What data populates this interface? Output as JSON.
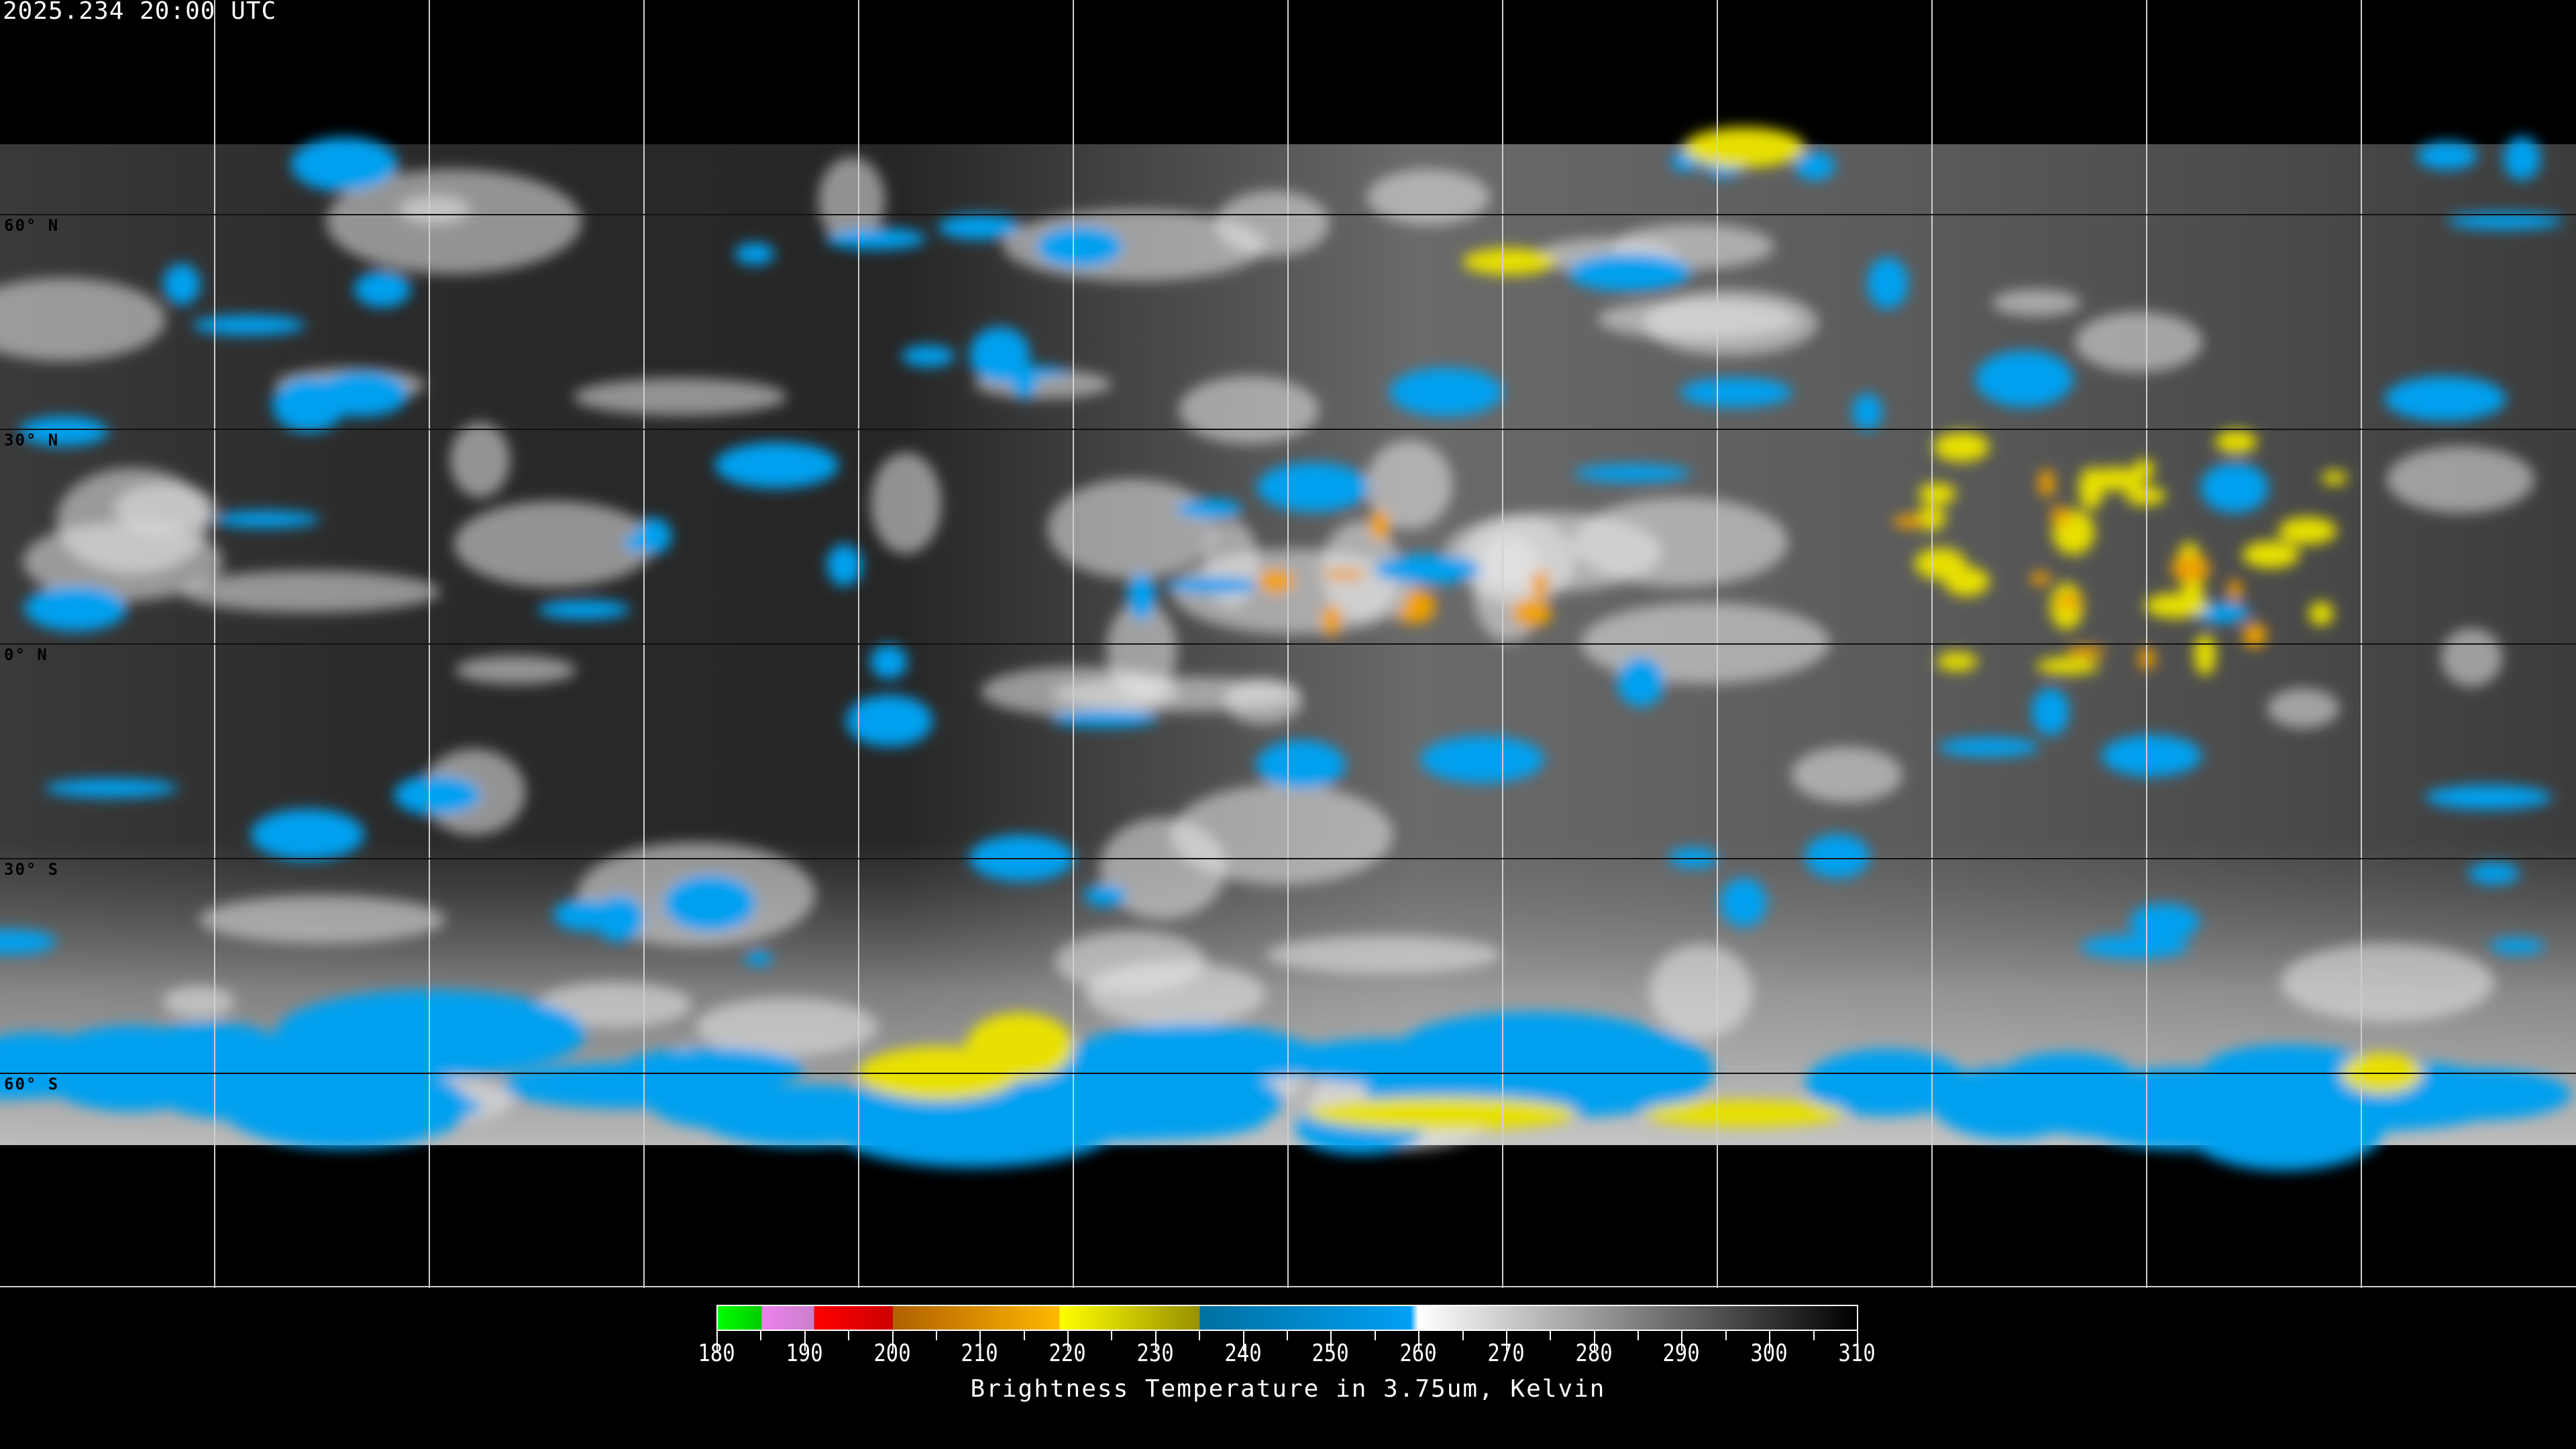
{
  "header": {
    "timestamp": "2025.234 20:00 UTC"
  },
  "map": {
    "projection": "equirectangular",
    "graticule_spacing_deg": 30,
    "lat_labels": [
      "60° N",
      "30° N",
      "0° N",
      "30° S",
      "60° S"
    ],
    "colors": {
      "background": "#000000",
      "gridline": "#cfcfcf",
      "coastline": "#ffffff",
      "cold_cloud_blue": "#00a0f0",
      "very_cold_yellow": "#e8e000",
      "coldest_orange": "#f0a000"
    }
  },
  "colorbar": {
    "ticks": [
      "180",
      "190",
      "200",
      "210",
      "220",
      "230",
      "240",
      "250",
      "260",
      "270",
      "280",
      "290",
      "300",
      "310"
    ],
    "range": [
      180,
      310
    ],
    "title": "Brightness Temperature in 3.75um, Kelvin",
    "segments": [
      {
        "from": 180,
        "to": 185,
        "colors": [
          "#00ff00",
          "#00cc00"
        ]
      },
      {
        "from": 185,
        "to": 191,
        "colors": [
          "#f080f0",
          "#c880c8"
        ]
      },
      {
        "from": 191,
        "to": 200,
        "colors": [
          "#ff0000",
          "#cc0000"
        ]
      },
      {
        "from": 200,
        "to": 219,
        "colors": [
          "#b06000",
          "#ffb800"
        ]
      },
      {
        "from": 219,
        "to": 235,
        "colors": [
          "#ffff00",
          "#989000"
        ]
      },
      {
        "from": 235,
        "to": 259,
        "colors": [
          "#0070a0",
          "#00a0f4"
        ]
      },
      {
        "from": 259,
        "to": 310,
        "colors": [
          "#ffffff",
          "#000000"
        ]
      }
    ]
  }
}
